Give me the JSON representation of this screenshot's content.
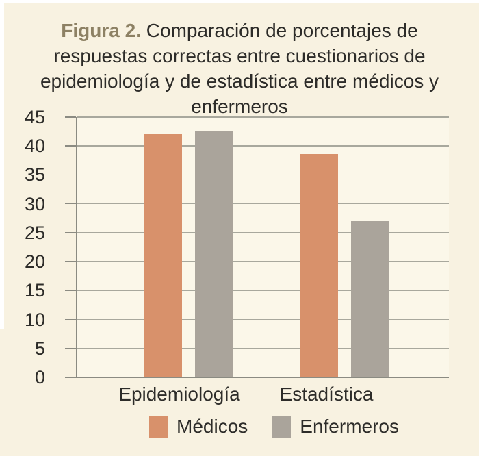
{
  "title": {
    "label": "Figura 2.",
    "text": "Comparación de porcentajes de respuestas correctas entre cuestionarios de epidemiología y de estadística entre médicos y enfermeros"
  },
  "colors": {
    "page_background": "#f8f2e1",
    "plot_background": "#fbf7e9",
    "medicos": "#d8916b",
    "enfermeros": "#aaa49b",
    "gridline": "#a8a89d",
    "axis": "#8b8b82",
    "figure_label": "#8d8164",
    "text": "#2d2c29"
  },
  "chart_data": {
    "type": "bar",
    "categories": [
      "Epidemiología",
      "Estadística"
    ],
    "series": [
      {
        "name": "Médicos",
        "color_key": "medicos",
        "values": [
          42,
          38.6
        ]
      },
      {
        "name": "Enfermeros",
        "color_key": "enfermeros",
        "values": [
          42.5,
          27
        ]
      }
    ],
    "ylabel": "",
    "xlabel": "",
    "ylim": [
      0,
      45
    ],
    "yticks": [
      0,
      5,
      10,
      15,
      20,
      25,
      30,
      35,
      40,
      45
    ],
    "grid": true,
    "legend_position": "bottom"
  }
}
